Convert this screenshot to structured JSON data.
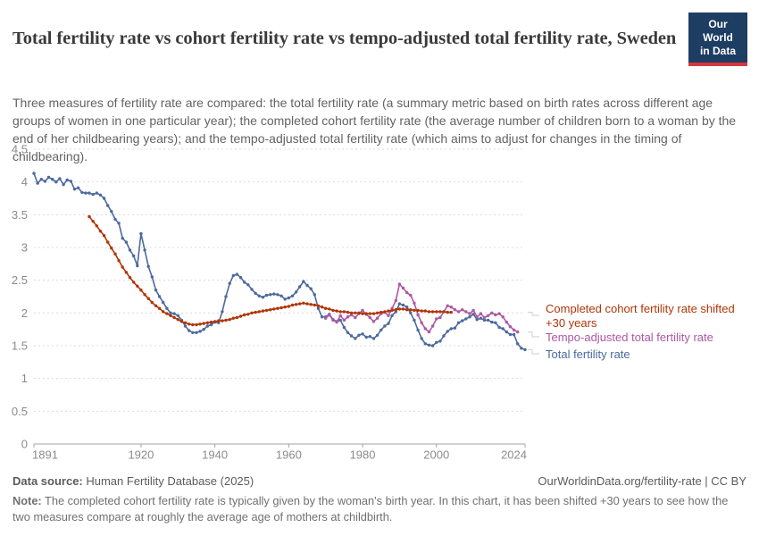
{
  "header": {
    "title": "Total fertility rate vs cohort fertility rate vs tempo-adjusted total fertility rate, Sweden",
    "subtitle": "Three measures of fertility rate are compared: the total fertility rate (a summary metric based on birth rates across different age groups of women in one particular year); the completed cohort fertility rate (the average number of children born to a woman by the end of her childbearing years); and the tempo-adjusted total fertility rate (which aims to adjust for changes in the timing of childbearing).",
    "logo": {
      "line1": "Our World",
      "line2": "in Data",
      "bg_color": "#1d3d63",
      "stripe_color": "#d6363f"
    }
  },
  "chart_data": {
    "type": "line",
    "title": "Total fertility rate vs cohort fertility rate vs tempo-adjusted total fertility rate, Sweden",
    "xlabel": "",
    "ylabel": "",
    "x_axis": {
      "ticks": [
        1891,
        1920,
        1940,
        1960,
        1980,
        2000,
        2024
      ],
      "range": [
        1891,
        2024
      ]
    },
    "y_axis": {
      "ticks": [
        0,
        0.5,
        1,
        1.5,
        2,
        2.5,
        3,
        3.5,
        4,
        4.5
      ],
      "range": [
        0,
        4.5
      ],
      "gridlines": "dashed"
    },
    "legend_position": "right-of-plot",
    "series": [
      {
        "name": "Total fertility rate",
        "color": "#4c6a9c",
        "points": [
          [
            1891,
            4.13
          ],
          [
            1892,
            3.98
          ],
          [
            1893,
            4.04
          ],
          [
            1894,
            4.01
          ],
          [
            1895,
            4.07
          ],
          [
            1896,
            4.04
          ],
          [
            1897,
            4.0
          ],
          [
            1898,
            4.05
          ],
          [
            1899,
            3.96
          ],
          [
            1900,
            4.03
          ],
          [
            1901,
            4.01
          ],
          [
            1902,
            3.89
          ],
          [
            1903,
            3.91
          ],
          [
            1904,
            3.84
          ],
          [
            1905,
            3.83
          ],
          [
            1906,
            3.83
          ],
          [
            1907,
            3.81
          ],
          [
            1908,
            3.83
          ],
          [
            1909,
            3.8
          ],
          [
            1910,
            3.75
          ],
          [
            1911,
            3.64
          ],
          [
            1912,
            3.55
          ],
          [
            1913,
            3.43
          ],
          [
            1914,
            3.37
          ],
          [
            1915,
            3.14
          ],
          [
            1916,
            3.08
          ],
          [
            1917,
            2.96
          ],
          [
            1918,
            2.87
          ],
          [
            1919,
            2.72
          ],
          [
            1920,
            3.21
          ],
          [
            1921,
            2.96
          ],
          [
            1922,
            2.71
          ],
          [
            1923,
            2.55
          ],
          [
            1924,
            2.35
          ],
          [
            1925,
            2.25
          ],
          [
            1926,
            2.16
          ],
          [
            1927,
            2.07
          ],
          [
            1928,
            2.0
          ],
          [
            1929,
            1.99
          ],
          [
            1930,
            1.96
          ],
          [
            1931,
            1.89
          ],
          [
            1932,
            1.8
          ],
          [
            1933,
            1.73
          ],
          [
            1934,
            1.7
          ],
          [
            1935,
            1.7
          ],
          [
            1936,
            1.72
          ],
          [
            1937,
            1.75
          ],
          [
            1938,
            1.8
          ],
          [
            1939,
            1.82
          ],
          [
            1940,
            1.86
          ],
          [
            1941,
            1.85
          ],
          [
            1942,
            2.02
          ],
          [
            1943,
            2.25
          ],
          [
            1944,
            2.45
          ],
          [
            1945,
            2.57
          ],
          [
            1946,
            2.59
          ],
          [
            1947,
            2.54
          ],
          [
            1948,
            2.47
          ],
          [
            1949,
            2.43
          ],
          [
            1950,
            2.36
          ],
          [
            1951,
            2.3
          ],
          [
            1952,
            2.26
          ],
          [
            1953,
            2.24
          ],
          [
            1954,
            2.27
          ],
          [
            1955,
            2.28
          ],
          [
            1956,
            2.29
          ],
          [
            1957,
            2.28
          ],
          [
            1958,
            2.26
          ],
          [
            1959,
            2.21
          ],
          [
            1960,
            2.23
          ],
          [
            1961,
            2.26
          ],
          [
            1962,
            2.32
          ],
          [
            1963,
            2.4
          ],
          [
            1964,
            2.48
          ],
          [
            1965,
            2.42
          ],
          [
            1966,
            2.37
          ],
          [
            1967,
            2.28
          ],
          [
            1968,
            2.07
          ],
          [
            1969,
            1.94
          ],
          [
            1970,
            1.94
          ],
          [
            1971,
            1.98
          ],
          [
            1972,
            1.9
          ],
          [
            1973,
            1.87
          ],
          [
            1974,
            1.89
          ],
          [
            1975,
            1.78
          ],
          [
            1976,
            1.7
          ],
          [
            1977,
            1.65
          ],
          [
            1978,
            1.61
          ],
          [
            1979,
            1.66
          ],
          [
            1980,
            1.68
          ],
          [
            1981,
            1.63
          ],
          [
            1982,
            1.64
          ],
          [
            1983,
            1.61
          ],
          [
            1984,
            1.66
          ],
          [
            1985,
            1.74
          ],
          [
            1986,
            1.8
          ],
          [
            1987,
            1.84
          ],
          [
            1988,
            1.96
          ],
          [
            1989,
            2.02
          ],
          [
            1990,
            2.14
          ],
          [
            1991,
            2.12
          ],
          [
            1992,
            2.09
          ],
          [
            1993,
            2.0
          ],
          [
            1994,
            1.89
          ],
          [
            1995,
            1.74
          ],
          [
            1996,
            1.61
          ],
          [
            1997,
            1.53
          ],
          [
            1998,
            1.51
          ],
          [
            1999,
            1.5
          ],
          [
            2000,
            1.55
          ],
          [
            2001,
            1.57
          ],
          [
            2002,
            1.65
          ],
          [
            2003,
            1.72
          ],
          [
            2004,
            1.76
          ],
          [
            2005,
            1.77
          ],
          [
            2006,
            1.85
          ],
          [
            2007,
            1.88
          ],
          [
            2008,
            1.91
          ],
          [
            2009,
            1.94
          ],
          [
            2010,
            1.98
          ],
          [
            2011,
            1.9
          ],
          [
            2012,
            1.92
          ],
          [
            2013,
            1.89
          ],
          [
            2014,
            1.89
          ],
          [
            2015,
            1.86
          ],
          [
            2016,
            1.85
          ],
          [
            2017,
            1.78
          ],
          [
            2018,
            1.76
          ],
          [
            2019,
            1.71
          ],
          [
            2020,
            1.67
          ],
          [
            2021,
            1.67
          ],
          [
            2022,
            1.53
          ],
          [
            2023,
            1.46
          ],
          [
            2024,
            1.44
          ]
        ]
      },
      {
        "name": "Tempo-adjusted total fertility rate",
        "color": "#ad58a3",
        "points": [
          [
            1970,
            1.92
          ],
          [
            1971,
            1.97
          ],
          [
            1972,
            1.89
          ],
          [
            1973,
            1.86
          ],
          [
            1974,
            1.96
          ],
          [
            1975,
            1.89
          ],
          [
            1976,
            1.94
          ],
          [
            1977,
            1.97
          ],
          [
            1978,
            1.93
          ],
          [
            1979,
            1.99
          ],
          [
            1980,
            2.04
          ],
          [
            1981,
            1.98
          ],
          [
            1982,
            1.93
          ],
          [
            1983,
            1.87
          ],
          [
            1984,
            1.92
          ],
          [
            1985,
            1.99
          ],
          [
            1986,
            2.01
          ],
          [
            1987,
            1.96
          ],
          [
            1988,
            2.07
          ],
          [
            1989,
            2.19
          ],
          [
            1990,
            2.44
          ],
          [
            1991,
            2.38
          ],
          [
            1992,
            2.31
          ],
          [
            1993,
            2.27
          ],
          [
            1994,
            2.15
          ],
          [
            1995,
            1.97
          ],
          [
            1996,
            1.85
          ],
          [
            1997,
            1.76
          ],
          [
            1998,
            1.71
          ],
          [
            1999,
            1.8
          ],
          [
            2000,
            1.91
          ],
          [
            2001,
            1.93
          ],
          [
            2002,
            2.02
          ],
          [
            2003,
            2.11
          ],
          [
            2004,
            2.09
          ],
          [
            2005,
            2.05
          ],
          [
            2006,
            2.02
          ],
          [
            2007,
            2.05
          ],
          [
            2008,
            2.02
          ],
          [
            2009,
            1.99
          ],
          [
            2010,
            2.04
          ],
          [
            2011,
            1.94
          ],
          [
            2012,
            1.99
          ],
          [
            2013,
            1.93
          ],
          [
            2014,
            1.96
          ],
          [
            2015,
            2.0
          ],
          [
            2016,
            1.97
          ],
          [
            2017,
            1.99
          ],
          [
            2018,
            1.94
          ],
          [
            2019,
            1.86
          ],
          [
            2020,
            1.79
          ],
          [
            2021,
            1.74
          ],
          [
            2022,
            1.71
          ]
        ]
      },
      {
        "name": "Completed cohort fertility rate shifted +30 years",
        "color": "#b13507",
        "points": [
          [
            1906,
            3.47
          ],
          [
            1907,
            3.4
          ],
          [
            1908,
            3.33
          ],
          [
            1909,
            3.25
          ],
          [
            1910,
            3.18
          ],
          [
            1911,
            3.08
          ],
          [
            1912,
            2.99
          ],
          [
            1913,
            2.9
          ],
          [
            1914,
            2.8
          ],
          [
            1915,
            2.7
          ],
          [
            1916,
            2.62
          ],
          [
            1917,
            2.54
          ],
          [
            1918,
            2.47
          ],
          [
            1919,
            2.41
          ],
          [
            1920,
            2.35
          ],
          [
            1921,
            2.28
          ],
          [
            1922,
            2.22
          ],
          [
            1923,
            2.16
          ],
          [
            1924,
            2.11
          ],
          [
            1925,
            2.07
          ],
          [
            1926,
            2.02
          ],
          [
            1927,
            1.99
          ],
          [
            1928,
            1.96
          ],
          [
            1929,
            1.93
          ],
          [
            1930,
            1.9
          ],
          [
            1931,
            1.87
          ],
          [
            1932,
            1.85
          ],
          [
            1933,
            1.83
          ],
          [
            1934,
            1.82
          ],
          [
            1935,
            1.82
          ],
          [
            1936,
            1.83
          ],
          [
            1937,
            1.84
          ],
          [
            1938,
            1.85
          ],
          [
            1939,
            1.86
          ],
          [
            1940,
            1.87
          ],
          [
            1941,
            1.88
          ],
          [
            1942,
            1.88
          ],
          [
            1943,
            1.89
          ],
          [
            1944,
            1.9
          ],
          [
            1945,
            1.92
          ],
          [
            1946,
            1.93
          ],
          [
            1947,
            1.95
          ],
          [
            1948,
            1.97
          ],
          [
            1949,
            1.98
          ],
          [
            1950,
            2.0
          ],
          [
            1951,
            2.01
          ],
          [
            1952,
            2.02
          ],
          [
            1953,
            2.03
          ],
          [
            1954,
            2.04
          ],
          [
            1955,
            2.05
          ],
          [
            1956,
            2.06
          ],
          [
            1957,
            2.07
          ],
          [
            1958,
            2.08
          ],
          [
            1959,
            2.09
          ],
          [
            1960,
            2.1
          ],
          [
            1961,
            2.12
          ],
          [
            1962,
            2.13
          ],
          [
            1963,
            2.14
          ],
          [
            1964,
            2.15
          ],
          [
            1965,
            2.14
          ],
          [
            1966,
            2.13
          ],
          [
            1967,
            2.12
          ],
          [
            1968,
            2.11
          ],
          [
            1969,
            2.09
          ],
          [
            1970,
            2.07
          ],
          [
            1971,
            2.06
          ],
          [
            1972,
            2.04
          ],
          [
            1973,
            2.03
          ],
          [
            1974,
            2.02
          ],
          [
            1975,
            2.02
          ],
          [
            1976,
            2.01
          ],
          [
            1977,
            2.0
          ],
          [
            1978,
            2.0
          ],
          [
            1979,
            2.0
          ],
          [
            1980,
            1.99
          ],
          [
            1981,
            1.99
          ],
          [
            1982,
            1.99
          ],
          [
            1983,
            1.99
          ],
          [
            1984,
            2.0
          ],
          [
            1985,
            2.01
          ],
          [
            1986,
            2.02
          ],
          [
            1987,
            2.03
          ],
          [
            1988,
            2.04
          ],
          [
            1989,
            2.05
          ],
          [
            1990,
            2.06
          ],
          [
            1991,
            2.06
          ],
          [
            1992,
            2.05
          ],
          [
            1993,
            2.05
          ],
          [
            1994,
            2.04
          ],
          [
            1995,
            2.04
          ],
          [
            1996,
            2.03
          ],
          [
            1997,
            2.03
          ],
          [
            1998,
            2.02
          ],
          [
            1999,
            2.02
          ],
          [
            2000,
            2.02
          ],
          [
            2001,
            2.02
          ],
          [
            2002,
            2.02
          ],
          [
            2003,
            2.01
          ],
          [
            2004,
            2.01
          ]
        ]
      }
    ]
  },
  "legend": [
    {
      "series": 2,
      "color": "#b13507",
      "lines": [
        "Completed cohort fertility rate shifted",
        "+30 years"
      ]
    },
    {
      "series": 1,
      "color": "#ad58a3",
      "lines": [
        "Tempo-adjusted total fertility rate"
      ]
    },
    {
      "series": 0,
      "color": "#4c6a9c",
      "lines": [
        "Total fertility rate"
      ]
    }
  ],
  "footer": {
    "source_label": "Data source:",
    "source_value": " Human Fertility Database (2025)",
    "link": "OurWorldinData.org/fertility-rate | CC BY",
    "note_label": "Note:",
    "note_value": " The completed cohort fertility rate is typically given by the woman's birth year. In this chart, it has been shifted +30 years to see how the two measures compare at roughly the average age of mothers at childbirth."
  }
}
